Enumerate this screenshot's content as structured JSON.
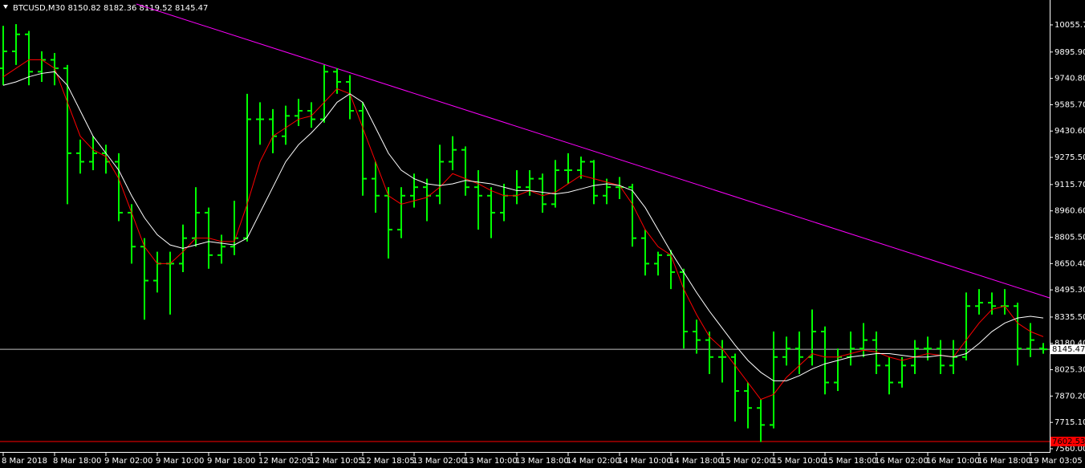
{
  "chart_data": {
    "type": "ohlc",
    "title": "BTCUSD,M30  8150.82 8182.36 8119.52 8145.47",
    "color": "#00ff00",
    "ylim": [
      7536.4,
      10202.2
    ],
    "yticks": [
      {
        "value": 10055.7,
        "label": "10055.70"
      },
      {
        "value": 9895.9,
        "label": "9895.90"
      },
      {
        "value": 9740.8,
        "label": "9740.80"
      },
      {
        "value": 9585.7,
        "label": "9585.70"
      },
      {
        "value": 9430.6,
        "label": "9430.60"
      },
      {
        "value": 9275.5,
        "label": "9275.50"
      },
      {
        "value": 9115.7,
        "label": "9115.70"
      },
      {
        "value": 8960.6,
        "label": "8960.60"
      },
      {
        "value": 8805.5,
        "label": "8805.50"
      },
      {
        "value": 8650.4,
        "label": "8650.40"
      },
      {
        "value": 8495.3,
        "label": "8495.30"
      },
      {
        "value": 8335.5,
        "label": "8335.50"
      },
      {
        "value": 8180.4,
        "label": "8180.40"
      },
      {
        "value": 8025.3,
        "label": "8025.30"
      },
      {
        "value": 7870.2,
        "label": "7870.20"
      },
      {
        "value": 7715.1,
        "label": "7715.10"
      },
      {
        "value": 7560,
        "label": "7560.00"
      }
    ],
    "categories": [
      "8 Mar 2018",
      null,
      null,
      null,
      "8 Mar 18:00",
      null,
      null,
      null,
      "9 Mar 02:00",
      null,
      null,
      null,
      "9 Mar 10:00",
      null,
      null,
      null,
      "9 Mar 18:00",
      null,
      null,
      null,
      "12 Mar 02:05",
      null,
      null,
      null,
      "12 Mar 10:05",
      null,
      null,
      null,
      "12 Mar 18:05",
      null,
      null,
      null,
      "13 Mar 02:00",
      null,
      null,
      null,
      "13 Mar 10:00",
      null,
      null,
      null,
      "13 Mar 18:00",
      null,
      null,
      null,
      "14 Mar 02:00",
      null,
      null,
      null,
      "14 Mar 10:00",
      null,
      null,
      null,
      "14 Mar 18:00",
      null,
      null,
      null,
      "15 Mar 02:00",
      null,
      null,
      null,
      "15 Mar 10:00",
      null,
      null,
      null,
      "15 Mar 18:00",
      null,
      null,
      null,
      "16 Mar 02:00",
      null,
      null,
      null,
      "16 Mar 10:00",
      null,
      null,
      null,
      "16 Mar 18:00",
      null,
      null,
      null,
      "19 Mar 03:05",
      null
    ],
    "candles": [
      [
        9800,
        10050,
        9700,
        9900
      ],
      [
        9900,
        10060,
        9820,
        10000
      ],
      [
        10000,
        10020,
        9700,
        9780
      ],
      [
        9780,
        9900,
        9720,
        9850
      ],
      [
        9850,
        9890,
        9700,
        9800
      ],
      [
        9800,
        9820,
        9000,
        9300
      ],
      [
        9300,
        9380,
        9180,
        9250
      ],
      [
        9250,
        9400,
        9200,
        9300
      ],
      [
        9300,
        9350,
        9180,
        9250
      ],
      [
        9250,
        9300,
        8900,
        8950
      ],
      [
        8950,
        9000,
        8650,
        8750
      ],
      [
        8750,
        8800,
        8320,
        8550
      ],
      [
        8550,
        8720,
        8480,
        8650
      ],
      [
        8650,
        8720,
        8350,
        8650
      ],
      [
        8650,
        8880,
        8600,
        8800
      ],
      [
        8800,
        9100,
        8750,
        8950
      ],
      [
        8950,
        8980,
        8620,
        8700
      ],
      [
        8700,
        8820,
        8650,
        8750
      ],
      [
        8750,
        9020,
        8700,
        8800
      ],
      [
        8800,
        9650,
        8780,
        9500
      ],
      [
        9500,
        9600,
        9350,
        9500
      ],
      [
        9500,
        9560,
        9300,
        9400
      ],
      [
        9400,
        9580,
        9350,
        9520
      ],
      [
        9520,
        9620,
        9460,
        9550
      ],
      [
        9550,
        9600,
        9450,
        9500
      ],
      [
        9500,
        9820,
        9480,
        9780
      ],
      [
        9780,
        9800,
        9650,
        9720
      ],
      [
        9720,
        9760,
        9500,
        9550
      ],
      [
        9550,
        9600,
        9050,
        9150
      ],
      [
        9150,
        9250,
        8950,
        9050
      ],
      [
        9050,
        9100,
        8680,
        8850
      ],
      [
        8850,
        9100,
        8800,
        9050
      ],
      [
        9050,
        9180,
        8980,
        9100
      ],
      [
        9100,
        9150,
        8900,
        9050
      ],
      [
        9050,
        9350,
        9000,
        9250
      ],
      [
        9250,
        9400,
        9200,
        9320
      ],
      [
        9320,
        9340,
        9050,
        9100
      ],
      [
        9100,
        9200,
        8850,
        9050
      ],
      [
        9050,
        9100,
        8800,
        8950
      ],
      [
        8950,
        9120,
        8900,
        9050
      ],
      [
        9050,
        9200,
        9000,
        9100
      ],
      [
        9100,
        9200,
        9050,
        9150
      ],
      [
        9150,
        9180,
        8950,
        9000
      ],
      [
        9000,
        9260,
        8980,
        9200
      ],
      [
        9200,
        9300,
        9120,
        9200
      ],
      [
        9200,
        9280,
        9150,
        9250
      ],
      [
        9250,
        9260,
        9000,
        9050
      ],
      [
        9050,
        9150,
        9000,
        9100
      ],
      [
        9100,
        9160,
        9030,
        9100
      ],
      [
        9100,
        9120,
        8750,
        8800
      ],
      [
        8800,
        8850,
        8580,
        8650
      ],
      [
        8650,
        8720,
        8580,
        8700
      ],
      [
        8700,
        8730,
        8500,
        8600
      ],
      [
        8600,
        8620,
        8150,
        8250
      ],
      [
        8250,
        8320,
        8120,
        8200
      ],
      [
        8200,
        8250,
        8000,
        8100
      ],
      [
        8100,
        8200,
        7950,
        8100
      ],
      [
        8100,
        8120,
        7720,
        7900
      ],
      [
        7900,
        7950,
        7680,
        7800
      ],
      [
        7800,
        7850,
        7600,
        7700
      ],
      [
        7700,
        8250,
        7680,
        8100
      ],
      [
        8100,
        8220,
        8050,
        8150
      ],
      [
        8150,
        8250,
        8000,
        8100
      ],
      [
        8100,
        8380,
        8050,
        8250
      ],
      [
        8250,
        8280,
        7880,
        7950
      ],
      [
        7950,
        8150,
        7900,
        8100
      ],
      [
        8100,
        8250,
        8050,
        8150
      ],
      [
        8150,
        8300,
        8100,
        8200
      ],
      [
        8200,
        8250,
        8000,
        8050
      ],
      [
        8050,
        8100,
        7880,
        7950
      ],
      [
        7950,
        8100,
        7920,
        8050
      ],
      [
        8050,
        8200,
        8000,
        8150
      ],
      [
        8150,
        8220,
        8080,
        8150
      ],
      [
        8150,
        8200,
        8000,
        8050
      ],
      [
        8050,
        8200,
        8000,
        8100
      ],
      [
        8100,
        8480,
        8080,
        8400
      ],
      [
        8400,
        8500,
        8350,
        8420
      ],
      [
        8420,
        8480,
        8350,
        8400
      ],
      [
        8400,
        8500,
        8350,
        8400
      ],
      [
        8400,
        8420,
        8050,
        8150
      ],
      [
        8150,
        8300,
        8100,
        8200
      ],
      [
        8150.82,
        8182.36,
        8119.52,
        8145.47
      ]
    ],
    "series": [
      {
        "color": "#ff0000",
        "values": [
          9750,
          9800,
          9850,
          9850,
          9800,
          9600,
          9400,
          9320,
          9280,
          9150,
          8950,
          8750,
          8650,
          8650,
          8720,
          8800,
          8800,
          8780,
          8780,
          9000,
          9250,
          9400,
          9450,
          9500,
          9520,
          9600,
          9680,
          9650,
          9450,
          9250,
          9050,
          9000,
          9020,
          9040,
          9100,
          9180,
          9150,
          9120,
          9080,
          9050,
          9050,
          9080,
          9050,
          9070,
          9120,
          9170,
          9150,
          9130,
          9110,
          9000,
          8850,
          8750,
          8700,
          8500,
          8350,
          8220,
          8150,
          8050,
          7950,
          7850,
          7880,
          7980,
          8050,
          8120,
          8100,
          8100,
          8120,
          8140,
          8130,
          8100,
          8080,
          8100,
          8120,
          8110,
          8100,
          8200,
          8300,
          8380,
          8400,
          8300,
          8250,
          8220
        ]
      },
      {
        "color": "#ffffff",
        "values": [
          9700,
          9720,
          9750,
          9770,
          9780,
          9700,
          9550,
          9400,
          9300,
          9200,
          9050,
          8920,
          8820,
          8760,
          8740,
          8760,
          8780,
          8770,
          8760,
          8800,
          8950,
          9100,
          9250,
          9350,
          9420,
          9500,
          9600,
          9650,
          9600,
          9450,
          9300,
          9200,
          9150,
          9120,
          9110,
          9120,
          9140,
          9130,
          9120,
          9100,
          9080,
          9080,
          9070,
          9060,
          9070,
          9090,
          9110,
          9120,
          9110,
          9080,
          8980,
          8850,
          8720,
          8600,
          8480,
          8370,
          8270,
          8170,
          8080,
          8010,
          7960,
          7960,
          7990,
          8030,
          8060,
          8080,
          8100,
          8110,
          8120,
          8120,
          8110,
          8100,
          8100,
          8110,
          8100,
          8120,
          8180,
          8250,
          8300,
          8330,
          8340,
          8330
        ]
      }
    ],
    "trendline": {
      "color": "#ff00ff",
      "x": [
        10.375,
        81.5
      ],
      "values": [
        10178.6,
        8448
      ]
    },
    "levels": [
      {
        "value": 8145.47,
        "color": "#c0c0c0",
        "label_color": "#ffffff"
      },
      {
        "value": 7602.53,
        "color": "#ff0000",
        "label_color": "#ff0000"
      }
    ]
  }
}
